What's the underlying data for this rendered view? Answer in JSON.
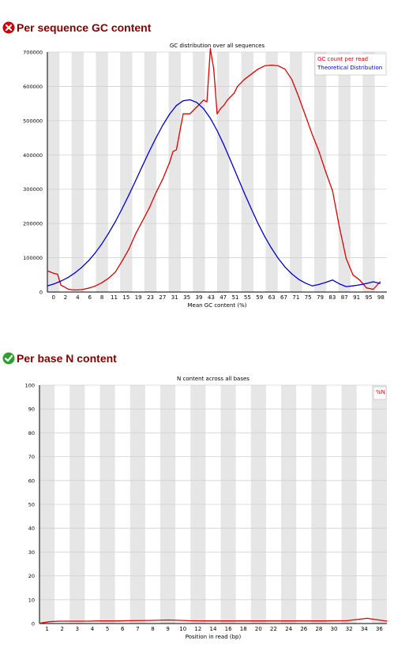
{
  "sections": [
    {
      "title": "Per sequence GC content",
      "status": "fail",
      "status_icon": "error-circle-icon",
      "status_color": "#cc0000"
    },
    {
      "title": "Per base N content",
      "status": "pass",
      "status_icon": "checkmark-circle-icon",
      "status_color": "#2e9e2e"
    }
  ],
  "chart_data": [
    {
      "type": "line",
      "title": "GC distribution over all sequences",
      "xlabel": "Mean GC content (%)",
      "ylabel": "",
      "xlim": [
        0,
        100
      ],
      "ylim": [
        0,
        700000
      ],
      "yticks": [
        0,
        100000,
        200000,
        300000,
        400000,
        500000,
        600000,
        700000
      ],
      "ytick_labels": [
        "0",
        "100000",
        "200000",
        "300000",
        "400000",
        "500000",
        "600000",
        "700000"
      ],
      "xtick_labels": [
        "0",
        "2",
        "4",
        "6",
        "8",
        "11",
        "15",
        "19",
        "23",
        "27",
        "31",
        "35",
        "39",
        "43",
        "47",
        "51",
        "55",
        "59",
        "63",
        "67",
        "71",
        "75",
        "79",
        "83",
        "87",
        "91",
        "95",
        "98"
      ],
      "grid": "alternating vertical bands",
      "legend_position": "top-right",
      "series": [
        {
          "name": "GC count per read",
          "color": "#dd0000",
          "x": [
            0,
            2,
            3,
            4,
            5,
            6,
            7,
            8,
            10,
            12,
            14,
            16,
            18,
            20,
            22,
            24,
            26,
            28,
            30,
            32,
            34,
            36,
            37,
            38,
            40,
            42,
            44,
            46,
            47,
            48,
            49,
            50,
            51,
            52,
            53,
            55,
            56,
            58,
            60,
            62,
            64,
            66,
            68,
            70,
            72,
            74,
            76,
            78,
            80,
            82,
            84,
            86,
            88,
            90,
            92,
            94,
            96,
            98
          ],
          "y": [
            62000,
            54000,
            52000,
            20000,
            15000,
            9000,
            7000,
            6000,
            7000,
            11000,
            17000,
            27000,
            40000,
            58000,
            90000,
            125000,
            170000,
            207000,
            245000,
            290000,
            330000,
            378000,
            410000,
            415000,
            520000,
            520000,
            540000,
            560000,
            555000,
            710000,
            650000,
            520000,
            535000,
            545000,
            560000,
            580000,
            600000,
            620000,
            635000,
            650000,
            660000,
            662000,
            660000,
            650000,
            620000,
            570000,
            515000,
            460000,
            410000,
            350000,
            295000,
            190000,
            98000,
            50000,
            35000,
            12000,
            8000,
            30000
          ]
        },
        {
          "name": "Theoretical Distribution",
          "color": "#0000cc",
          "x": [
            0,
            2,
            4,
            6,
            8,
            10,
            12,
            14,
            16,
            18,
            20,
            22,
            24,
            26,
            28,
            30,
            32,
            34,
            36,
            38,
            40,
            42,
            44,
            46,
            48,
            50,
            52,
            54,
            56,
            58,
            60,
            62,
            64,
            66,
            68,
            70,
            72,
            74,
            76,
            78,
            80,
            82,
            84,
            86,
            88,
            90,
            92,
            94,
            96,
            98
          ],
          "y": [
            18000,
            24000,
            32000,
            42000,
            55000,
            71000,
            90000,
            113000,
            140000,
            171000,
            205000,
            243000,
            283000,
            325000,
            368000,
            410000,
            450000,
            487000,
            519000,
            544000,
            558000,
            561000,
            553000,
            535000,
            507000,
            471000,
            429000,
            383000,
            336000,
            289000,
            244000,
            201000,
            162000,
            128000,
            98000,
            73000,
            53000,
            37000,
            26000,
            18000,
            22000,
            28000,
            35000,
            24000,
            16000,
            18000,
            21000,
            25000,
            30000,
            25000
          ]
        }
      ]
    },
    {
      "type": "line",
      "title": "N content across all bases",
      "xlabel": "Position in read (bp)",
      "ylabel": "",
      "xlim": [
        1,
        36
      ],
      "ylim": [
        0,
        100
      ],
      "yticks": [
        0,
        10,
        20,
        30,
        40,
        50,
        60,
        70,
        80,
        90,
        100
      ],
      "ytick_labels": [
        "0",
        "10",
        "20",
        "30",
        "40",
        "50",
        "60",
        "70",
        "80",
        "90",
        "100"
      ],
      "xtick_labels": [
        "1",
        "2",
        "3",
        "4",
        "5",
        "6",
        "7",
        "8",
        "9",
        "10",
        "12",
        "14",
        "16",
        "18",
        "20",
        "22",
        "24",
        "26",
        "28",
        "30",
        "32",
        "34",
        "36"
      ],
      "grid": "alternating vertical bands",
      "legend_position": "top-right",
      "series": [
        {
          "name": "%N",
          "color": "#dd0000",
          "x": [
            1,
            2,
            3,
            4,
            5,
            6,
            7,
            8,
            9,
            10,
            12,
            14,
            16,
            18,
            20,
            22,
            24,
            26,
            28,
            30,
            32,
            34,
            36
          ],
          "y": [
            0.1,
            0.8,
            1.0,
            1.0,
            1.0,
            1.0,
            1.1,
            1.1,
            1.1,
            1.2,
            1.3,
            1.5,
            1.2,
            1.1,
            1.1,
            1.1,
            1.1,
            1.1,
            1.1,
            1.1,
            1.2,
            2.2,
            1.0
          ]
        }
      ]
    }
  ]
}
